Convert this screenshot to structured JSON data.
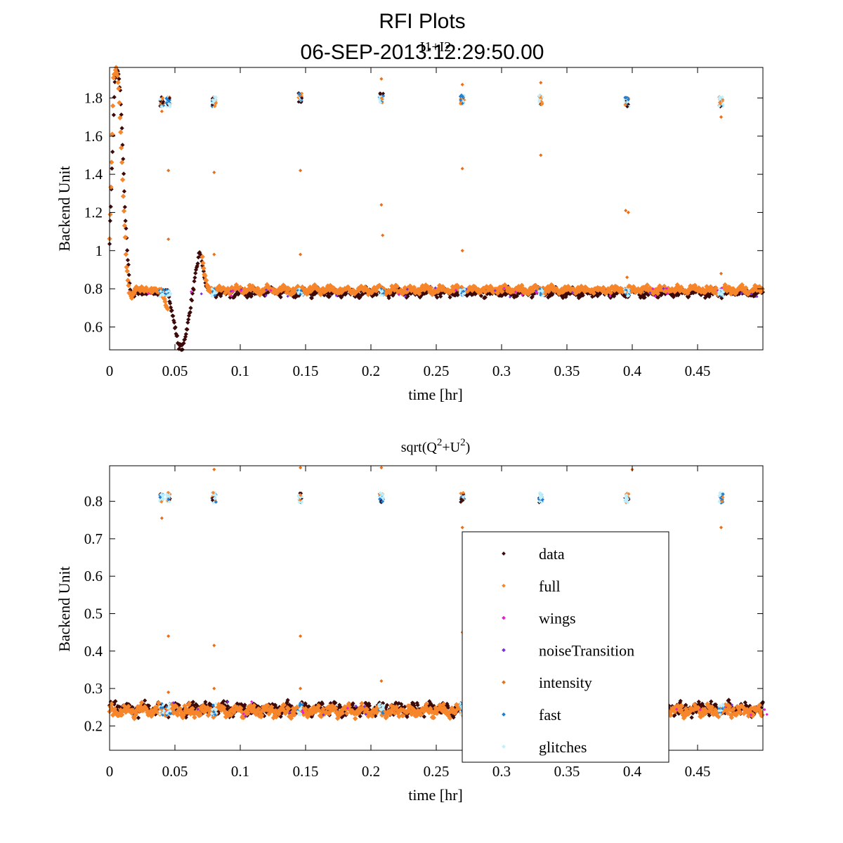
{
  "figure": {
    "title_line1": "RFI Plots",
    "title_line2": "06-SEP-2013:12:29:50.00"
  },
  "chart_data": [
    {
      "type": "scatter",
      "title": "I1+I2",
      "xlabel": "time [hr]",
      "ylabel": "Backend Unit",
      "xlim": [
        0,
        0.5
      ],
      "ylim": [
        0.48,
        1.96
      ],
      "xticks": [
        "0",
        "0.05",
        "0.1",
        "0.15",
        "0.2",
        "0.25",
        "0.3",
        "0.35",
        "0.4",
        "0.45"
      ],
      "yticks": [
        "0.6",
        "0.8",
        "1",
        "1.2",
        "1.4",
        "1.6",
        "1.8"
      ],
      "grid": false,
      "baseline": {
        "data_level": 0.78,
        "full_level": 0.795,
        "noise_amplitude": 0.025
      },
      "curve_data": {
        "x": [
          0,
          0.004,
          0.006,
          0.008,
          0.01,
          0.011,
          0.012,
          0.014,
          0.016,
          0.018,
          0.02,
          0.025,
          0.03,
          0.035,
          0.04,
          0.045,
          0.05,
          0.053,
          0.056,
          0.06,
          0.063,
          0.066,
          0.069,
          0.071,
          0.073,
          0.075,
          0.08
        ],
        "y": [
          1.05,
          1.88,
          1.96,
          1.85,
          1.55,
          1.35,
          1.17,
          0.95,
          0.78,
          0.76,
          0.79,
          0.78,
          0.78,
          0.78,
          0.78,
          0.78,
          0.6,
          0.5,
          0.49,
          0.62,
          0.75,
          0.88,
          1.0,
          0.93,
          0.84,
          0.8,
          0.78
        ]
      },
      "curve_full": {
        "x": [
          0,
          0.003,
          0.005,
          0.007,
          0.009,
          0.011,
          0.013,
          0.015,
          0.017,
          0.02,
          0.025,
          0.03,
          0.04,
          0.05,
          0.055,
          0.06,
          0.065,
          0.07,
          0.072,
          0.075,
          0.08
        ],
        "y": [
          1.05,
          1.9,
          1.96,
          1.85,
          1.55,
          1.2,
          0.92,
          0.78,
          0.76,
          0.8,
          0.8,
          0.79,
          0.79,
          0.55,
          0.5,
          0.65,
          0.85,
          1.03,
          0.9,
          0.8,
          0.79
        ]
      },
      "glitch_clusters": {
        "x": [
          0.04,
          0.045,
          0.08,
          0.146,
          0.208,
          0.27,
          0.33,
          0.396,
          0.468
        ],
        "y": [
          1.78,
          1.78,
          1.78,
          1.8,
          1.8,
          1.79,
          1.79,
          1.78,
          1.78
        ]
      },
      "intensity_outliers": {
        "x": [
          0.045,
          0.08,
          0.146,
          0.208,
          0.209,
          0.27,
          0.33,
          0.395,
          0.397,
          0.468,
          0.045,
          0.08,
          0.146,
          0.208,
          0.27,
          0.33,
          0.396,
          0.468,
          0.04,
          0.27
        ],
        "y": [
          1.42,
          1.41,
          1.42,
          1.24,
          1.08,
          1.43,
          1.5,
          1.21,
          1.2,
          1.7,
          1.06,
          0.98,
          0.98,
          1.9,
          1.0,
          1.88,
          0.86,
          0.88,
          1.73,
          1.87
        ]
      }
    },
    {
      "type": "scatter",
      "title": "sqrt(Q",
      "title_sup1": "2",
      "title_mid": "+U",
      "title_sup2": "2",
      "title_end": ")",
      "xlabel": "time [hr]",
      "ylabel": "Backend Unit",
      "xlim": [
        0,
        0.5
      ],
      "ylim": [
        0.135,
        0.895
      ],
      "xticks": [
        "0",
        "0.05",
        "0.1",
        "0.15",
        "0.2",
        "0.25",
        "0.3",
        "0.35",
        "0.4",
        "0.45"
      ],
      "yticks": [
        "0.2",
        "0.3",
        "0.4",
        "0.5",
        "0.6",
        "0.7",
        "0.8"
      ],
      "grid": false,
      "baseline": {
        "data_level": 0.245,
        "full_level": 0.24,
        "noise_amplitude": 0.02
      },
      "glitch_clusters": {
        "x": [
          0.04,
          0.045,
          0.08,
          0.146,
          0.208,
          0.27,
          0.33,
          0.396,
          0.468
        ],
        "y": [
          0.81,
          0.81,
          0.81,
          0.81,
          0.81,
          0.81,
          0.81,
          0.81,
          0.81
        ]
      },
      "intensity_outliers": {
        "x": [
          0.045,
          0.08,
          0.146,
          0.208,
          0.27,
          0.33,
          0.396,
          0.468,
          0.04,
          0.08,
          0.146,
          0.208,
          0.27,
          0.4,
          0.045,
          0.08,
          0.146
        ],
        "y": [
          0.44,
          0.415,
          0.44,
          0.32,
          0.45,
          0.27,
          0.27,
          0.73,
          0.755,
          0.885,
          0.89,
          0.89,
          0.73,
          0.885,
          0.29,
          0.3,
          0.3
        ]
      },
      "legend": {
        "placement": "bottom-right",
        "entries": [
          "data",
          "full",
          "wings",
          "noiseTransition",
          "intensity",
          "fast",
          "glitches"
        ]
      }
    }
  ],
  "series_colors": {
    "data": "#3d0a0a",
    "full": "#f7852a",
    "wings": "#e81bd6",
    "noiseTransition": "#7b2fe0",
    "intensity": "#e8701a",
    "fast": "#1e7fd4",
    "glitches": "#bff0ff"
  }
}
